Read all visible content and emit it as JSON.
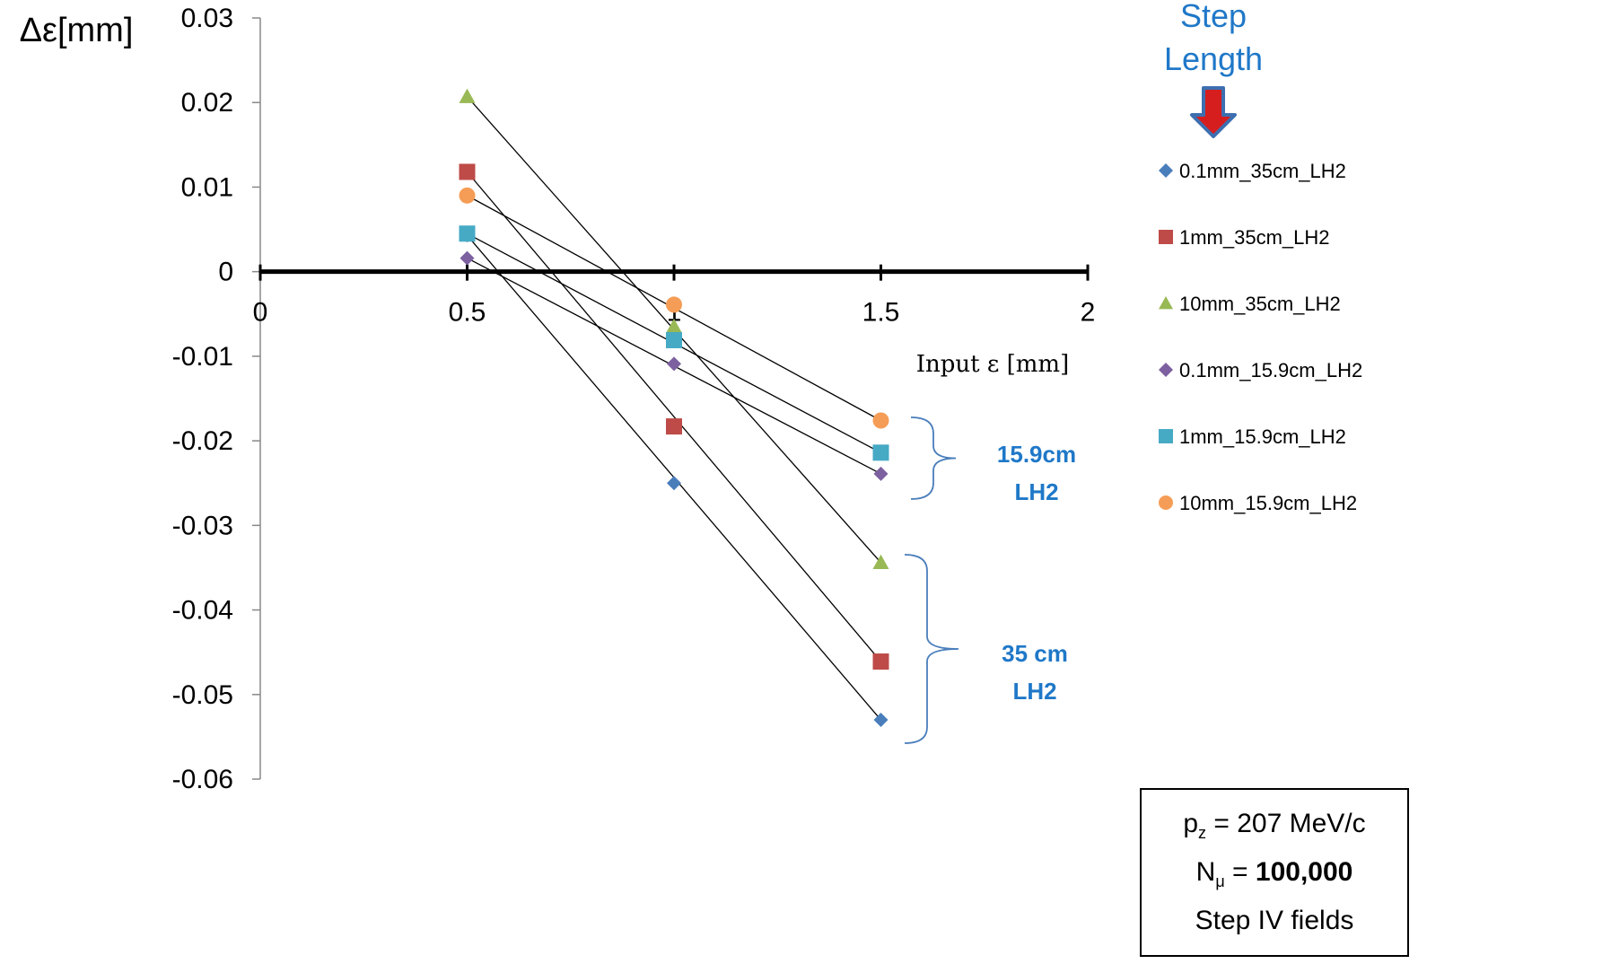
{
  "chart_data": {
    "type": "scatter",
    "ylabel": "Δε[mm]",
    "xlabel": "Input ε [mm]",
    "xlim": [
      0,
      2
    ],
    "ylim": [
      -0.06,
      0.03
    ],
    "x_ticks": [
      "0",
      "0.5",
      "1",
      "1.5",
      "2"
    ],
    "y_ticks": [
      "0.03",
      "0.02",
      "0.01",
      "0",
      "-0.01",
      "-0.02",
      "-0.03",
      "-0.04",
      "-0.05",
      "-0.06"
    ],
    "grid": false,
    "legend_position": "right",
    "legend_title": [
      "Step",
      "Length"
    ],
    "series": [
      {
        "name": "0.1mm_35cm_LH2",
        "marker": "diamond",
        "color": "#4a7ebb",
        "x": [
          0.5,
          1.0,
          1.5
        ],
        "y": [
          0.0043,
          -0.025,
          -0.053
        ]
      },
      {
        "name": "1mm_35cm_LH2",
        "marker": "square",
        "color": "#be4b48",
        "x": [
          0.5,
          1.0,
          1.5
        ],
        "y": [
          0.0118,
          -0.0183,
          -0.0461
        ]
      },
      {
        "name": "10mm_35cm_LH2",
        "marker": "triangle",
        "color": "#98b954",
        "x": [
          0.5,
          1.0,
          1.5
        ],
        "y": [
          0.0207,
          -0.0065,
          -0.0344
        ]
      },
      {
        "name": "0.1mm_15.9cm_LH2",
        "marker": "diamond",
        "color": "#7d60a0",
        "x": [
          0.5,
          1.0,
          1.5
        ],
        "y": [
          0.0016,
          -0.0109,
          -0.0239
        ]
      },
      {
        "name": "1mm_15.9cm_LH2",
        "marker": "square",
        "color": "#46aac5",
        "x": [
          0.5,
          1.0,
          1.5
        ],
        "y": [
          0.0045,
          -0.0081,
          -0.0214
        ]
      },
      {
        "name": "10mm_15.9cm_LH2",
        "marker": "circle",
        "color": "#f59d56",
        "x": [
          0.5,
          1.0,
          1.5
        ],
        "y": [
          0.009,
          -0.0039,
          -0.0176
        ]
      }
    ],
    "annotations": [
      {
        "lines": [
          "15.9cm",
          "LH2"
        ]
      },
      {
        "lines": [
          "35 cm",
          "LH2"
        ]
      }
    ]
  },
  "info_box": {
    "pz_label": "p",
    "pz_sub": "z",
    "pz_value": " = 207 MeV/c",
    "n_label": "N",
    "n_sub": "μ",
    "n_eq": " = ",
    "n_value": "100,000",
    "fields": "Step IV fields"
  }
}
